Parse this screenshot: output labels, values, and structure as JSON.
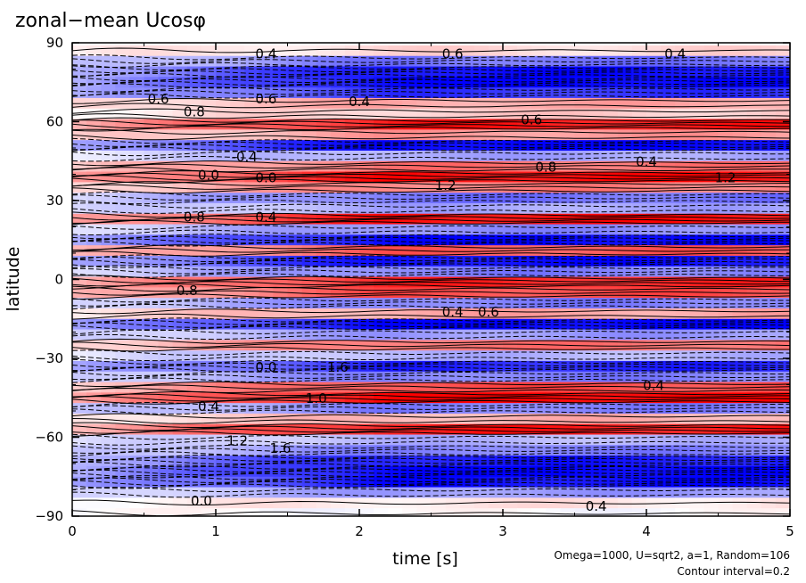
{
  "chart_data": {
    "type": "heatmap",
    "title": "zonal−mean Ucosφ",
    "xlabel": "time [s]",
    "ylabel": "latitude",
    "xlim": [
      0,
      5
    ],
    "ylim": [
      -90,
      90
    ],
    "x_ticks": [
      0,
      1,
      2,
      3,
      4,
      5
    ],
    "x_tick_labels": [
      "0",
      "1",
      "2",
      "3",
      "4",
      "5"
    ],
    "y_ticks": [
      90,
      60,
      30,
      0,
      -30,
      -60,
      -90
    ],
    "y_tick_labels": [
      "90",
      "60",
      "30",
      "0",
      "−30",
      "−60",
      "−90"
    ],
    "annotation_line1": "Omega=1000, U=sqrt2, a=1, Random=106",
    "annotation_line2": "Contour interval=0.2",
    "colors": {
      "positive": "#ff0000",
      "negative": "#0000ff",
      "zero": "#ffffff",
      "contour": "#000000"
    },
    "grid": false,
    "bands": [
      {
        "lat": 87,
        "v": 0.15
      },
      {
        "lat": 83,
        "v": -0.55
      },
      {
        "lat": 79,
        "v": -0.95
      },
      {
        "lat": 75,
        "v": -1.0
      },
      {
        "lat": 71,
        "v": -0.8
      },
      {
        "lat": 67,
        "v": 0.35
      },
      {
        "lat": 63,
        "v": 0.2
      },
      {
        "lat": 59,
        "v": 0.9
      },
      {
        "lat": 55,
        "v": 0.4
      },
      {
        "lat": 51,
        "v": -1.0
      },
      {
        "lat": 47,
        "v": -0.35
      },
      {
        "lat": 43,
        "v": 0.55
      },
      {
        "lat": 39,
        "v": 0.95
      },
      {
        "lat": 35,
        "v": 0.5
      },
      {
        "lat": 31,
        "v": -0.55
      },
      {
        "lat": 27,
        "v": -0.35
      },
      {
        "lat": 23,
        "v": 0.95
      },
      {
        "lat": 19,
        "v": -0.45
      },
      {
        "lat": 15,
        "v": -1.0
      },
      {
        "lat": 11,
        "v": 0.65
      },
      {
        "lat": 7,
        "v": -0.95
      },
      {
        "lat": 3,
        "v": -0.5
      },
      {
        "lat": -1,
        "v": 0.85
      },
      {
        "lat": -5,
        "v": 0.7
      },
      {
        "lat": -9,
        "v": -0.5
      },
      {
        "lat": -13,
        "v": 0.35
      },
      {
        "lat": -17,
        "v": -1.0
      },
      {
        "lat": -21,
        "v": -0.4
      },
      {
        "lat": -25,
        "v": 0.55
      },
      {
        "lat": -29,
        "v": -0.3
      },
      {
        "lat": -33,
        "v": -0.85
      },
      {
        "lat": -37,
        "v": -0.5
      },
      {
        "lat": -41,
        "v": 0.7
      },
      {
        "lat": -45,
        "v": 1.0
      },
      {
        "lat": -49,
        "v": -0.5
      },
      {
        "lat": -53,
        "v": 0.3
      },
      {
        "lat": -57,
        "v": 0.9
      },
      {
        "lat": -61,
        "v": -0.3
      },
      {
        "lat": -65,
        "v": -0.5
      },
      {
        "lat": -69,
        "v": -0.9
      },
      {
        "lat": -73,
        "v": -1.0
      },
      {
        "lat": -77,
        "v": -0.95
      },
      {
        "lat": -81,
        "v": -0.4
      },
      {
        "lat": -85,
        "v": 0.1
      },
      {
        "lat": -89,
        "v": 0.0
      }
    ],
    "contour_labels": [
      {
        "t": 1.35,
        "lat": 84,
        "text": "0.4"
      },
      {
        "t": 2.65,
        "lat": 84,
        "text": "0.6"
      },
      {
        "t": 4.2,
        "lat": 84,
        "text": "0.4"
      },
      {
        "t": 0.6,
        "lat": 67,
        "text": "0.6"
      },
      {
        "t": 1.35,
        "lat": 67,
        "text": "0.6"
      },
      {
        "t": 2.0,
        "lat": 66,
        "text": "0.4"
      },
      {
        "t": 0.85,
        "lat": 62,
        "text": "0.8"
      },
      {
        "t": 3.2,
        "lat": 59,
        "text": "0.6"
      },
      {
        "t": 1.2,
        "lat": 45,
        "text": "-0.4"
      },
      {
        "t": 3.3,
        "lat": 41,
        "text": "0.8"
      },
      {
        "t": 4.0,
        "lat": 43,
        "text": "0.4"
      },
      {
        "t": 0.95,
        "lat": 38,
        "text": "0.0"
      },
      {
        "t": 1.35,
        "lat": 37,
        "text": "0.0"
      },
      {
        "t": 4.55,
        "lat": 37,
        "text": "1.2"
      },
      {
        "t": 2.6,
        "lat": 34,
        "text": "1.2"
      },
      {
        "t": 0.85,
        "lat": 22,
        "text": "0.8"
      },
      {
        "t": 1.35,
        "lat": 22,
        "text": "0.4"
      },
      {
        "t": 0.8,
        "lat": -6,
        "text": "0.8"
      },
      {
        "t": 2.65,
        "lat": -14,
        "text": "0.4"
      },
      {
        "t": 2.9,
        "lat": -14,
        "text": "0.6"
      },
      {
        "t": 1.35,
        "lat": -35,
        "text": "0.0"
      },
      {
        "t": 1.85,
        "lat": -35,
        "text": "1.6"
      },
      {
        "t": 4.05,
        "lat": -42,
        "text": "0.4"
      },
      {
        "t": 1.7,
        "lat": -47,
        "text": "1.0"
      },
      {
        "t": 0.95,
        "lat": -50,
        "text": "0.4"
      },
      {
        "t": 1.15,
        "lat": -63,
        "text": "1.2"
      },
      {
        "t": 1.45,
        "lat": -66,
        "text": "1.6"
      },
      {
        "t": 0.9,
        "lat": -86,
        "text": "0.0"
      },
      {
        "t": 3.65,
        "lat": -88,
        "text": "0.4"
      }
    ]
  }
}
